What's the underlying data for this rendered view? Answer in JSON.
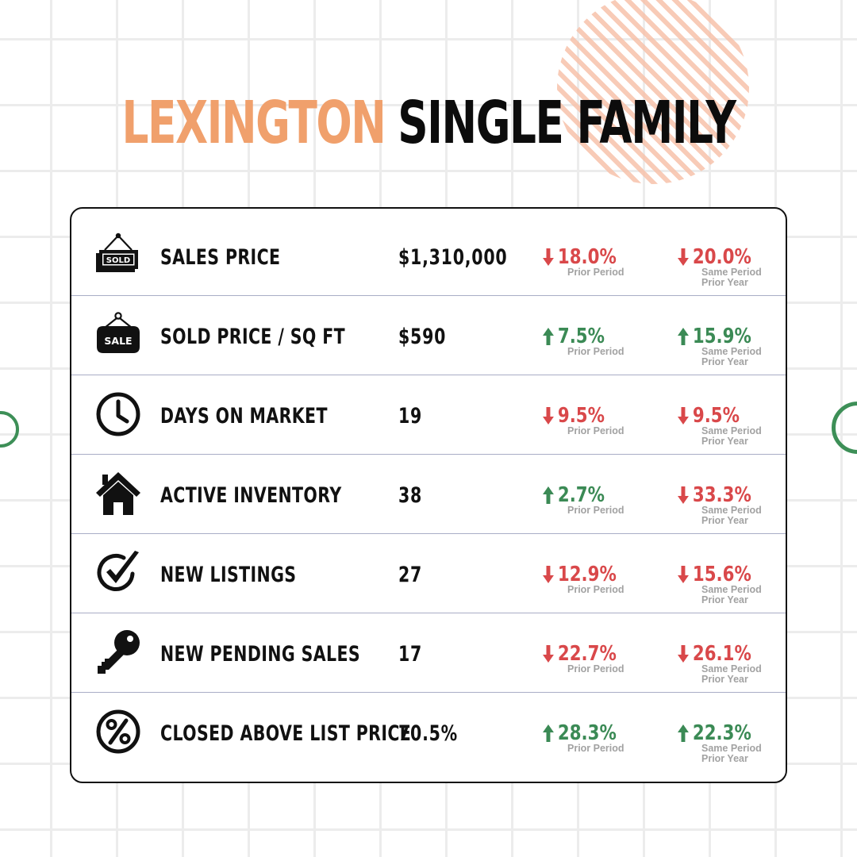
{
  "header": {
    "city": "LEXINGTON",
    "property_type": "SINGLE FAMILY"
  },
  "colors": {
    "accent": "#f0a06c",
    "up": "#3b8a55",
    "down": "#d9484a"
  },
  "rows": [
    {
      "icon": "sold-sign-icon",
      "icon_text": "SOLD",
      "label": "SALES PRICE",
      "value": "$1,310,000",
      "prior": {
        "dir": "down",
        "pct": "18.0%",
        "label": "Prior Period"
      },
      "year": {
        "dir": "down",
        "pct": "20.0%",
        "label1": "Same Period",
        "label2": "Prior Year"
      }
    },
    {
      "icon": "sale-sign-icon",
      "icon_text": "SALE",
      "label": "SOLD PRICE / SQ FT",
      "value": "$590",
      "prior": {
        "dir": "up",
        "pct": "7.5%",
        "label": "Prior Period"
      },
      "year": {
        "dir": "up",
        "pct": "15.9%",
        "label1": "Same Period",
        "label2": "Prior Year"
      }
    },
    {
      "icon": "clock-icon",
      "label": "DAYS ON MARKET",
      "value": "19",
      "prior": {
        "dir": "down",
        "pct": "9.5%",
        "label": "Prior Period"
      },
      "year": {
        "dir": "down",
        "pct": "9.5%",
        "label1": "Same Period",
        "label2": "Prior Year"
      }
    },
    {
      "icon": "house-icon",
      "label": "ACTIVE INVENTORY",
      "value": "38",
      "prior": {
        "dir": "up",
        "pct": "2.7%",
        "label": "Prior Period"
      },
      "year": {
        "dir": "down",
        "pct": "33.3%",
        "label1": "Same Period",
        "label2": "Prior Year"
      }
    },
    {
      "icon": "checkmark-circle-icon",
      "label": "NEW LISTINGS",
      "value": "27",
      "prior": {
        "dir": "down",
        "pct": "12.9%",
        "label": "Prior Period"
      },
      "year": {
        "dir": "down",
        "pct": "15.6%",
        "label1": "Same Period",
        "label2": "Prior Year"
      }
    },
    {
      "icon": "key-icon",
      "label": "NEW PENDING SALES",
      "value": "17",
      "prior": {
        "dir": "down",
        "pct": "22.7%",
        "label": "Prior Period"
      },
      "year": {
        "dir": "down",
        "pct": "26.1%",
        "label1": "Same Period",
        "label2": "Prior Year"
      }
    },
    {
      "icon": "percent-circle-icon",
      "label": "CLOSED ABOVE LIST PRICE",
      "value": "70.5%",
      "prior": {
        "dir": "up",
        "pct": "28.3%",
        "label": "Prior Period"
      },
      "year": {
        "dir": "up",
        "pct": "22.3%",
        "label1": "Same Period",
        "label2": "Prior Year"
      }
    }
  ]
}
